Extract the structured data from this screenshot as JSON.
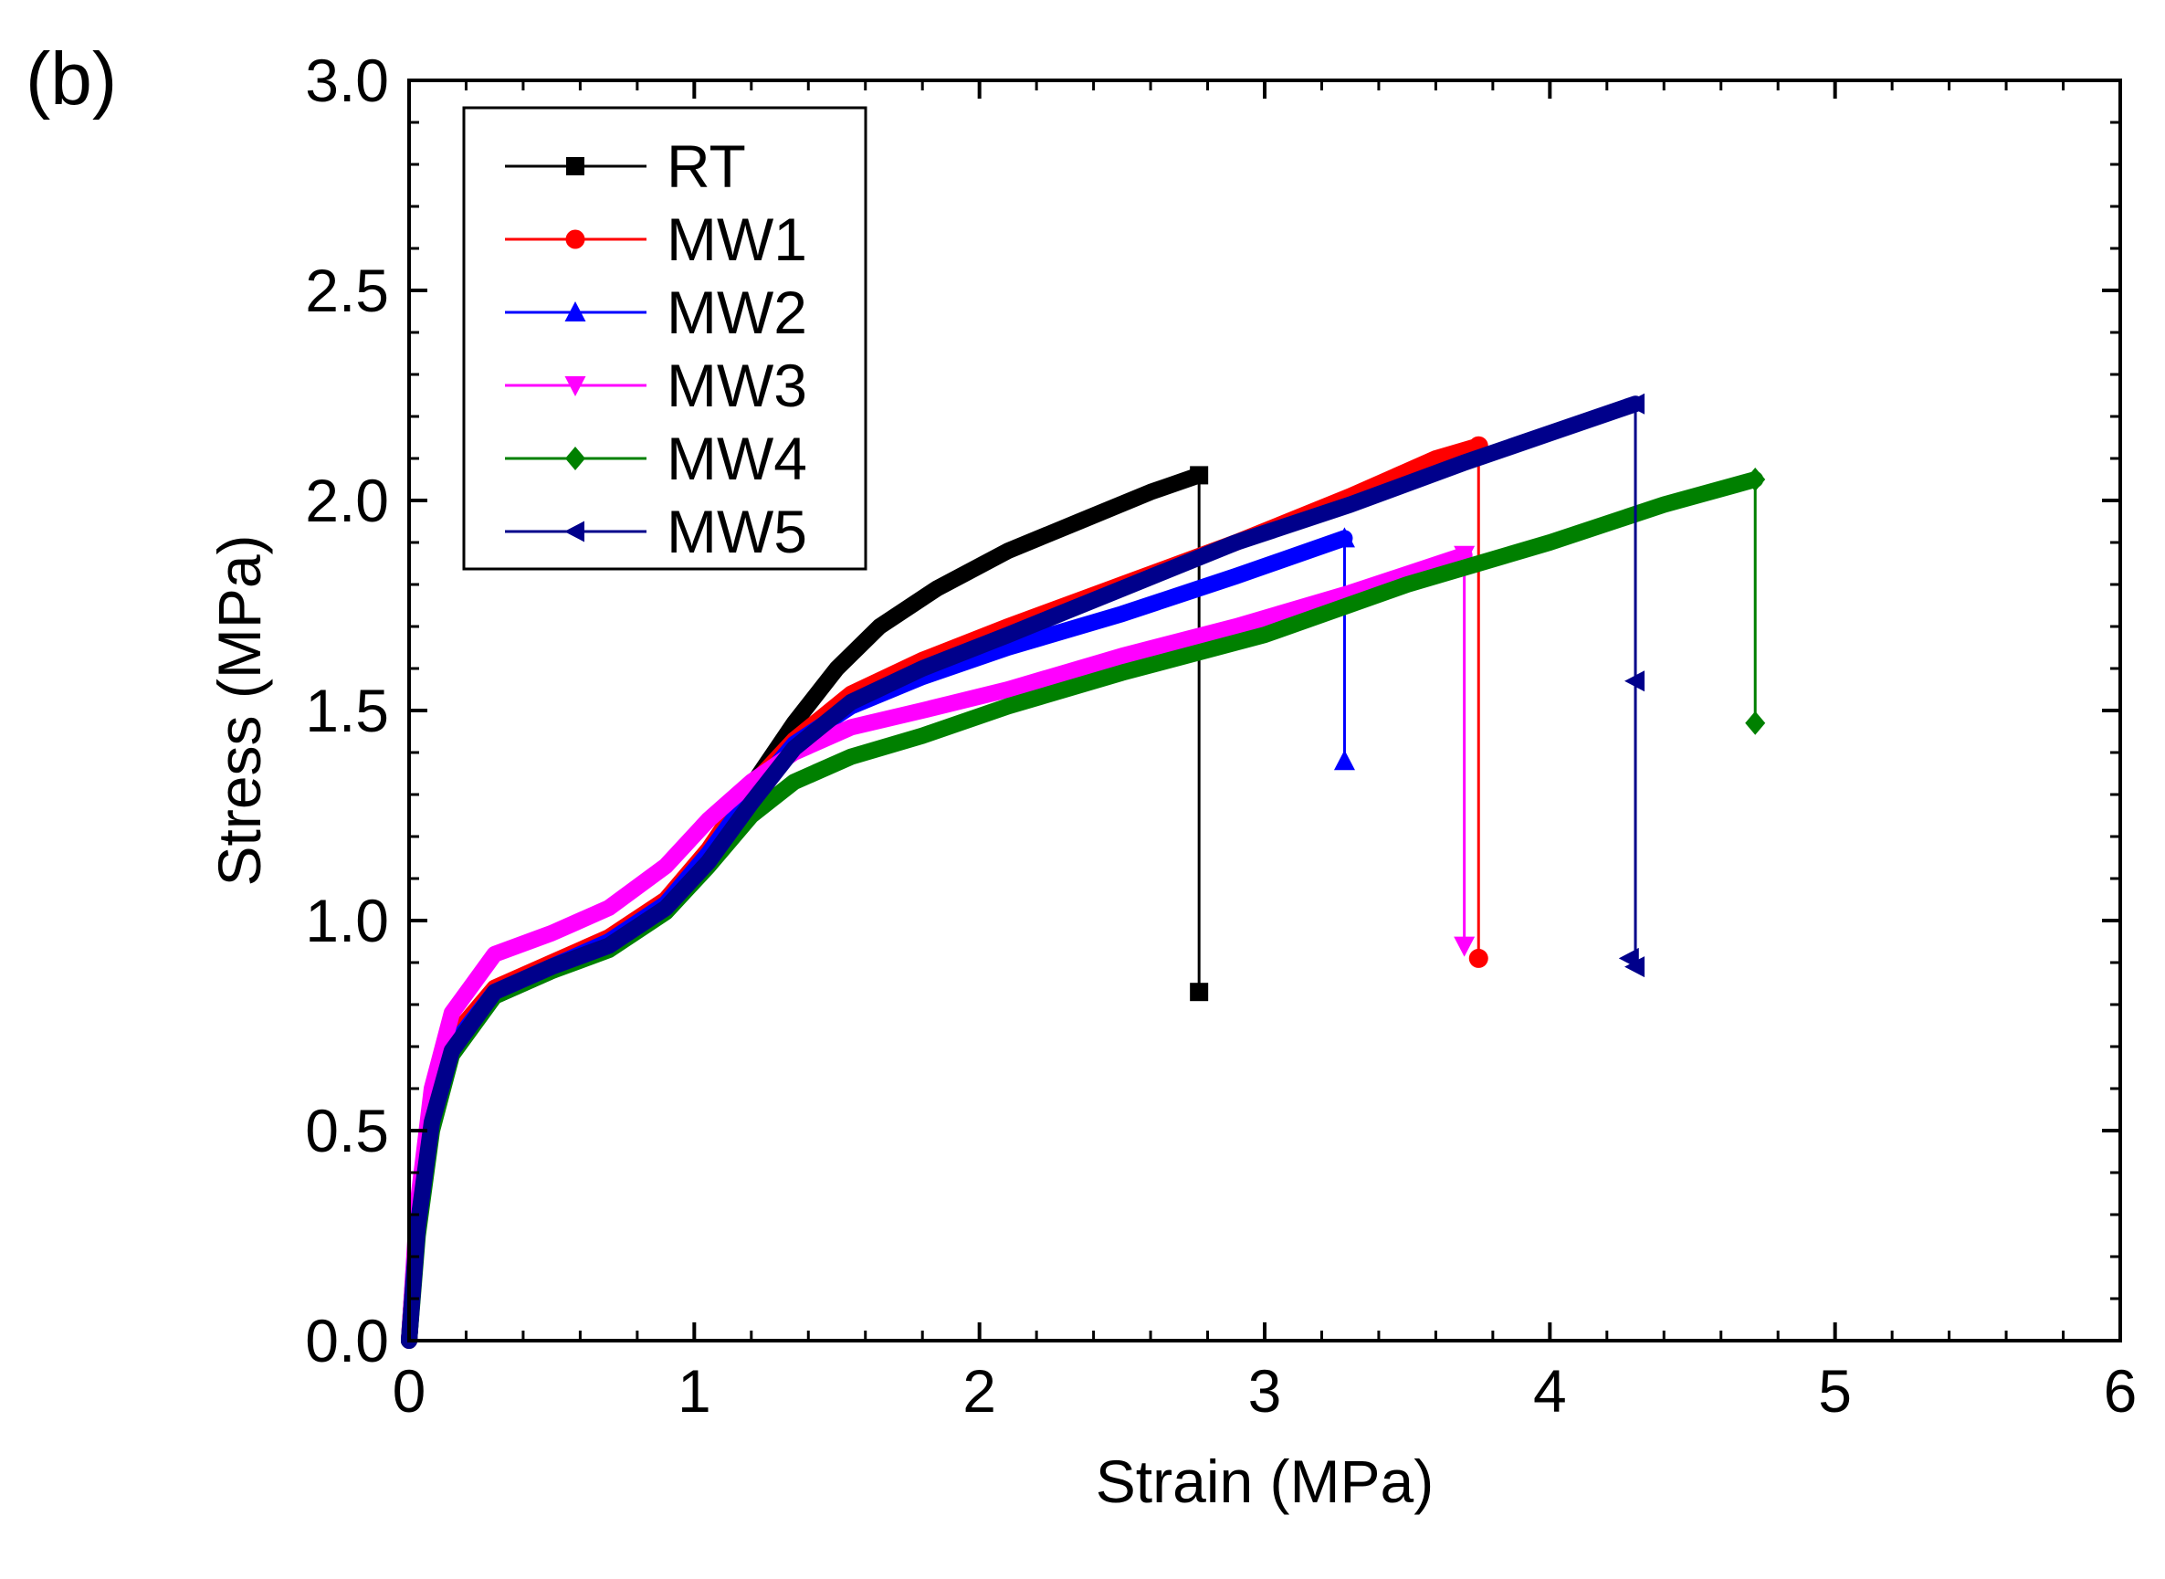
{
  "panel_label": "(b)",
  "chart_data": {
    "type": "line",
    "title": "",
    "xlabel": "Strain (MPa)",
    "ylabel": "Stress (MPa)",
    "xlim": [
      0,
      6
    ],
    "ylim": [
      0,
      3
    ],
    "xticks": [
      0,
      1,
      2,
      3,
      4,
      5,
      6
    ],
    "yticks": [
      0.0,
      0.5,
      1.0,
      1.5,
      2.0,
      2.5,
      3.0
    ],
    "xtick_labels": [
      "0",
      "1",
      "2",
      "3",
      "4",
      "5",
      "6"
    ],
    "ytick_labels": [
      "0.0",
      "0.5",
      "1.0",
      "1.5",
      "2.0",
      "2.5",
      "3.0"
    ],
    "legend_position": "top-left",
    "series": [
      {
        "name": "RT",
        "color": "#000000",
        "marker": "square",
        "points": [
          [
            0,
            0
          ],
          [
            0.03,
            0.3
          ],
          [
            0.08,
            0.55
          ],
          [
            0.15,
            0.7
          ],
          [
            0.3,
            0.82
          ],
          [
            0.5,
            0.88
          ],
          [
            0.7,
            0.94
          ],
          [
            0.9,
            1.04
          ],
          [
            1.05,
            1.15
          ],
          [
            1.2,
            1.32
          ],
          [
            1.35,
            1.47
          ],
          [
            1.5,
            1.6
          ],
          [
            1.65,
            1.7
          ],
          [
            1.85,
            1.79
          ],
          [
            2.1,
            1.88
          ],
          [
            2.35,
            1.95
          ],
          [
            2.6,
            2.02
          ],
          [
            2.77,
            2.06
          ]
        ],
        "failure": [
          [
            2.77,
            2.06
          ],
          [
            2.77,
            0.83
          ]
        ]
      },
      {
        "name": "MW1",
        "color": "#ff0000",
        "marker": "circle",
        "points": [
          [
            0,
            0
          ],
          [
            0.03,
            0.3
          ],
          [
            0.08,
            0.56
          ],
          [
            0.15,
            0.72
          ],
          [
            0.3,
            0.84
          ],
          [
            0.5,
            0.9
          ],
          [
            0.7,
            0.96
          ],
          [
            0.9,
            1.05
          ],
          [
            1.05,
            1.17
          ],
          [
            1.2,
            1.32
          ],
          [
            1.35,
            1.43
          ],
          [
            1.55,
            1.54
          ],
          [
            1.8,
            1.62
          ],
          [
            2.1,
            1.7
          ],
          [
            2.5,
            1.8
          ],
          [
            2.9,
            1.9
          ],
          [
            3.3,
            2.01
          ],
          [
            3.6,
            2.1
          ],
          [
            3.75,
            2.13
          ]
        ],
        "failure": [
          [
            3.75,
            2.13
          ],
          [
            3.75,
            0.91
          ]
        ]
      },
      {
        "name": "MW2",
        "color": "#0000ff",
        "marker": "triangle-up",
        "points": [
          [
            0,
            0
          ],
          [
            0.03,
            0.28
          ],
          [
            0.08,
            0.54
          ],
          [
            0.15,
            0.7
          ],
          [
            0.3,
            0.83
          ],
          [
            0.5,
            0.89
          ],
          [
            0.7,
            0.95
          ],
          [
            0.9,
            1.04
          ],
          [
            1.05,
            1.16
          ],
          [
            1.2,
            1.3
          ],
          [
            1.35,
            1.42
          ],
          [
            1.55,
            1.51
          ],
          [
            1.8,
            1.58
          ],
          [
            2.1,
            1.65
          ],
          [
            2.5,
            1.73
          ],
          [
            2.9,
            1.82
          ],
          [
            3.28,
            1.91
          ]
        ],
        "failure": [
          [
            3.28,
            1.91
          ],
          [
            3.28,
            1.38
          ]
        ]
      },
      {
        "name": "MW3",
        "color": "#ff00ff",
        "marker": "triangle-down",
        "points": [
          [
            0,
            0
          ],
          [
            0.03,
            0.32
          ],
          [
            0.08,
            0.6
          ],
          [
            0.15,
            0.78
          ],
          [
            0.3,
            0.92
          ],
          [
            0.5,
            0.97
          ],
          [
            0.7,
            1.03
          ],
          [
            0.9,
            1.13
          ],
          [
            1.05,
            1.24
          ],
          [
            1.2,
            1.33
          ],
          [
            1.35,
            1.4
          ],
          [
            1.55,
            1.46
          ],
          [
            1.8,
            1.5
          ],
          [
            2.1,
            1.55
          ],
          [
            2.5,
            1.63
          ],
          [
            2.9,
            1.7
          ],
          [
            3.3,
            1.78
          ],
          [
            3.7,
            1.87
          ]
        ],
        "failure": [
          [
            3.7,
            1.87
          ],
          [
            3.7,
            0.94
          ]
        ]
      },
      {
        "name": "MW4",
        "color": "#008000",
        "marker": "diamond",
        "points": [
          [
            0,
            0
          ],
          [
            0.03,
            0.25
          ],
          [
            0.08,
            0.5
          ],
          [
            0.15,
            0.68
          ],
          [
            0.3,
            0.82
          ],
          [
            0.5,
            0.88
          ],
          [
            0.7,
            0.93
          ],
          [
            0.9,
            1.02
          ],
          [
            1.05,
            1.13
          ],
          [
            1.2,
            1.25
          ],
          [
            1.35,
            1.33
          ],
          [
            1.55,
            1.39
          ],
          [
            1.8,
            1.44
          ],
          [
            2.1,
            1.51
          ],
          [
            2.5,
            1.59
          ],
          [
            3.0,
            1.68
          ],
          [
            3.5,
            1.8
          ],
          [
            4.0,
            1.9
          ],
          [
            4.4,
            1.99
          ],
          [
            4.72,
            2.05
          ]
        ],
        "failure": [
          [
            4.72,
            2.05
          ],
          [
            4.72,
            1.47
          ]
        ]
      },
      {
        "name": "MW5",
        "color": "#00008b",
        "marker": "triangle-left",
        "points": [
          [
            0,
            0
          ],
          [
            0.03,
            0.27
          ],
          [
            0.08,
            0.52
          ],
          [
            0.15,
            0.69
          ],
          [
            0.3,
            0.83
          ],
          [
            0.5,
            0.89
          ],
          [
            0.7,
            0.94
          ],
          [
            0.9,
            1.03
          ],
          [
            1.05,
            1.14
          ],
          [
            1.2,
            1.28
          ],
          [
            1.35,
            1.41
          ],
          [
            1.55,
            1.52
          ],
          [
            1.8,
            1.6
          ],
          [
            2.1,
            1.68
          ],
          [
            2.5,
            1.79
          ],
          [
            2.9,
            1.9
          ],
          [
            3.3,
            1.99
          ],
          [
            3.7,
            2.09
          ],
          [
            4.0,
            2.16
          ],
          [
            4.3,
            2.23
          ]
        ],
        "failure": [
          [
            4.3,
            2.23
          ],
          [
            4.3,
            0.89
          ]
        ],
        "extra_markers": [
          [
            4.3,
            1.57
          ],
          [
            4.28,
            0.91
          ]
        ]
      }
    ]
  }
}
